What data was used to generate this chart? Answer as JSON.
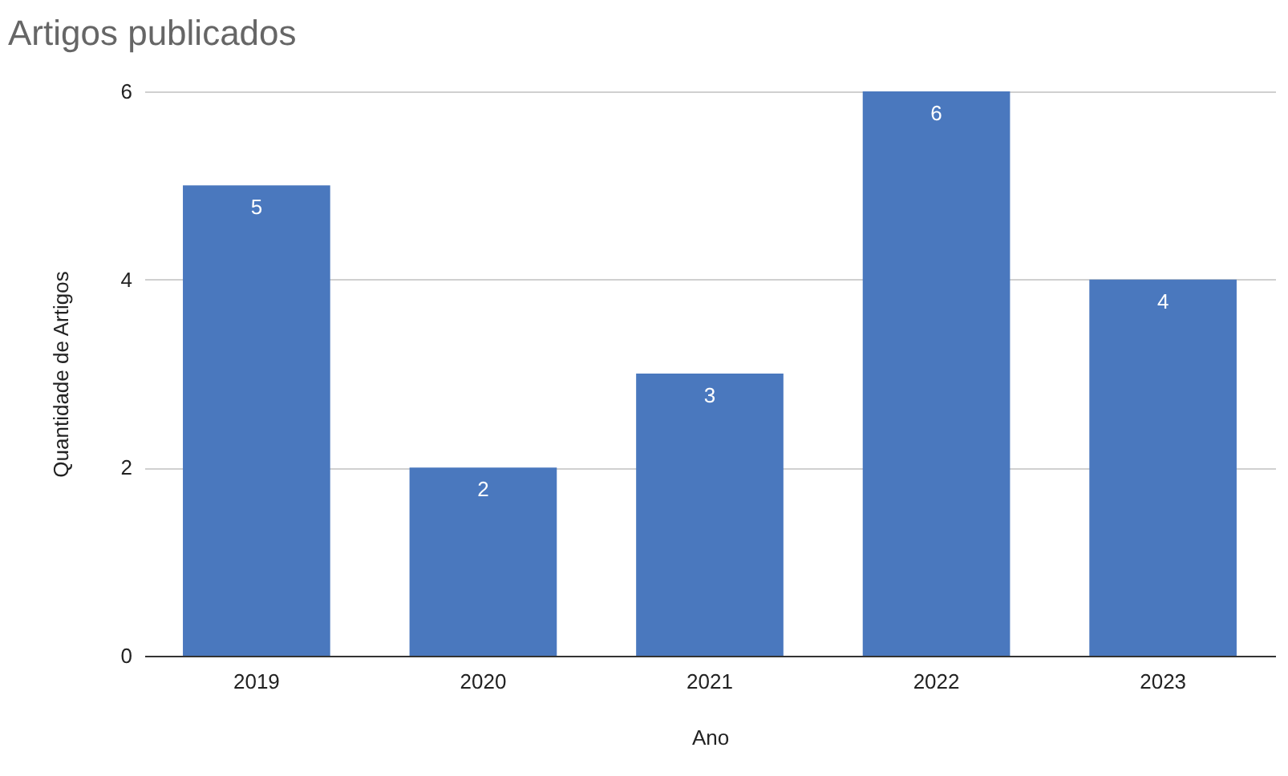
{
  "chart_data": {
    "type": "bar",
    "title": "Artigos publicados",
    "xlabel": "Ano",
    "ylabel": "Quantidade de Artigos",
    "categories": [
      "2019",
      "2020",
      "2021",
      "2022",
      "2023"
    ],
    "values": [
      5,
      2,
      3,
      6,
      4
    ],
    "color": "#4a78be",
    "ylim": [
      0,
      6
    ],
    "yticks": [
      0,
      2,
      4,
      6
    ],
    "grid": "y",
    "data_labels": true
  }
}
